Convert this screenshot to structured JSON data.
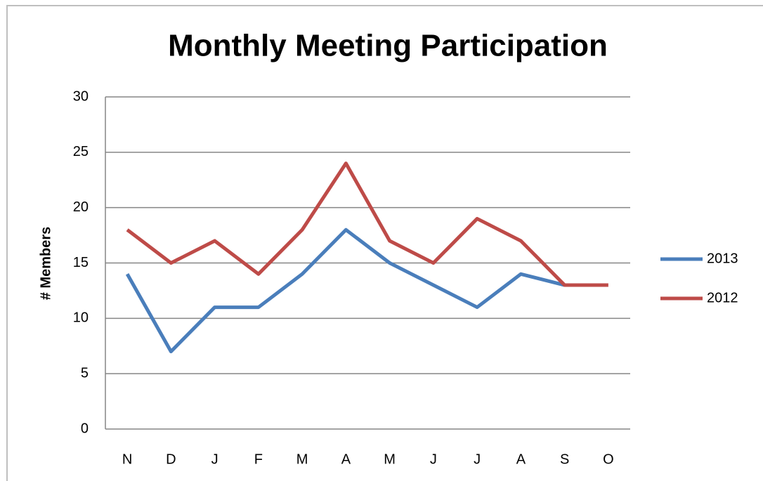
{
  "chart_data": {
    "type": "line",
    "title": "Monthly Meeting Participation",
    "y_label": "# Members",
    "categories": [
      "N",
      "D",
      "J",
      "F",
      "M",
      "A",
      "M",
      "J",
      "J",
      "A",
      "S",
      "O"
    ],
    "series": [
      {
        "name": "2013",
        "color": "#4a7ebb",
        "values": [
          14,
          7,
          11,
          11,
          14,
          18,
          15,
          13,
          11,
          14,
          13,
          null
        ]
      },
      {
        "name": "2012",
        "color": "#be4b48",
        "values": [
          18,
          15,
          17,
          14,
          18,
          24,
          17,
          15,
          19,
          17,
          13,
          13
        ]
      }
    ],
    "ylim": [
      0,
      30
    ],
    "yticks": [
      0,
      5,
      10,
      15,
      20,
      25,
      30
    ],
    "grid": true,
    "legend": "right"
  }
}
